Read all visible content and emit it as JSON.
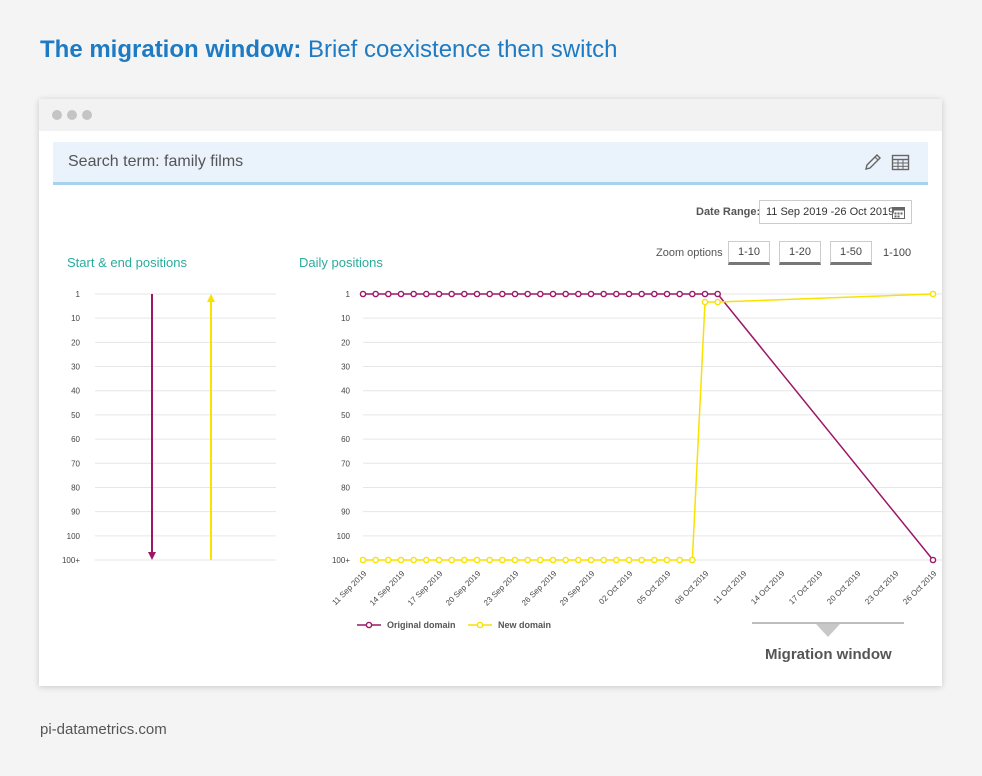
{
  "headline": {
    "bold": "The migration window:",
    "rest": " Brief coexistence then switch"
  },
  "search": {
    "label": "Search term: family films"
  },
  "date_range": {
    "label": "Date Range:",
    "value": "11 Sep 2019 -26 Oct 2019"
  },
  "zoom": {
    "label": "Zoom options",
    "buttons": [
      "1-10",
      "1-20",
      "1-50"
    ],
    "plain": "1-100"
  },
  "left_panel": {
    "title": "Start & end positions"
  },
  "right_panel": {
    "title": "Daily positions"
  },
  "migration_window": {
    "label": "Migration window"
  },
  "footer": {
    "text": "pi-datametrics.com"
  },
  "colors": {
    "original": "#9c1767",
    "new": "#f9e100",
    "accent": "#1e7bc3",
    "section": "#2bab9c"
  },
  "chart_data": [
    {
      "type": "line",
      "title": "Start & end positions",
      "y_ticks": [
        "1",
        "10",
        "20",
        "30",
        "40",
        "50",
        "60",
        "70",
        "80",
        "90",
        "100",
        "100+"
      ],
      "y_reversed": true,
      "series": [
        {
          "name": "Original domain",
          "start": "1",
          "end": "100+",
          "color": "#9c1767"
        },
        {
          "name": "New domain",
          "start": "100+",
          "end": "1",
          "color": "#f9e100"
        }
      ]
    },
    {
      "type": "line",
      "title": "Daily positions",
      "y_ticks": [
        "1",
        "10",
        "20",
        "30",
        "40",
        "50",
        "60",
        "70",
        "80",
        "90",
        "100",
        "100+"
      ],
      "y_reversed": true,
      "x_ticks": [
        "11 Sep 2019",
        "14 Sep 2019",
        "17 Sep 2019",
        "20 Sep 2019",
        "23 Sep 2019",
        "26 Sep 2019",
        "29 Sep 2019",
        "02 Oct 2019",
        "05 Oct 2019",
        "08 Oct 2019",
        "11 Oct 2019",
        "14 Oct 2019",
        "17 Oct 2019",
        "20 Oct 2019",
        "23 Oct 2019",
        "26 Oct 2019"
      ],
      "x_start": "11 Sep 2019",
      "x_end": "26 Oct 2019",
      "legend_position": "bottom-left",
      "series": [
        {
          "name": "Original domain",
          "color": "#9c1767",
          "values": [
            "1",
            "1",
            "1",
            "1",
            "1",
            "1",
            "1",
            "1",
            "1",
            "1",
            "1",
            "1",
            "1",
            "1",
            "1",
            "1",
            "1",
            "1",
            "1",
            "1",
            "1",
            "1",
            "1",
            "1",
            "1",
            "1",
            "1",
            "1",
            "1",
            "100+"
          ]
        },
        {
          "name": "New domain",
          "color": "#f9e100",
          "values": [
            "100+",
            "100+",
            "100+",
            "100+",
            "100+",
            "100+",
            "100+",
            "100+",
            "100+",
            "100+",
            "100+",
            "100+",
            "100+",
            "100+",
            "100+",
            "100+",
            "100+",
            "100+",
            "100+",
            "100+",
            "100+",
            "100+",
            "100+",
            "100+",
            "100+",
            "100+",
            "100+",
            "4",
            "4",
            "1"
          ]
        }
      ]
    }
  ]
}
